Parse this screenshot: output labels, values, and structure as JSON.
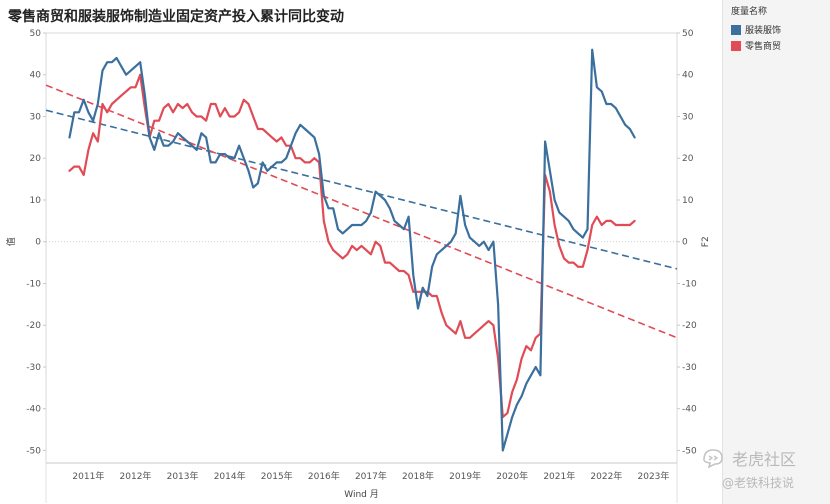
{
  "title": "零售商贸和服装服饰制造业固定资产投入累计同比变动",
  "legend": {
    "title": "度量名称",
    "items": [
      {
        "label": "服装服饰",
        "color": "#3a6f9e"
      },
      {
        "label": "零售商贸",
        "color": "#e04b56"
      }
    ]
  },
  "watermark": {
    "main": "老虎社区",
    "sub": "@老铁科技说"
  },
  "chart_data": {
    "type": "line",
    "xlabel": "Wind 月",
    "ylabel": "值",
    "ylabel_right": "F2",
    "ylim": [
      -53,
      50
    ],
    "yticks": [
      50,
      40,
      30,
      20,
      10,
      0,
      -10,
      -20,
      -30,
      -40,
      -50
    ],
    "xticks": [
      "2011年",
      "2012年",
      "2013年",
      "2014年",
      "2015年",
      "2016年",
      "2017年",
      "2018年",
      "2019年",
      "2020年",
      "2021年",
      "2022年",
      "2023年"
    ],
    "xlim": [
      2010.4,
      2023.8
    ],
    "grid": false,
    "series": [
      {
        "name": "服装服饰",
        "color": "#3a6f9e",
        "points": [
          [
            2010.9,
            25
          ],
          [
            2011.0,
            31
          ],
          [
            2011.1,
            31
          ],
          [
            2011.2,
            34
          ],
          [
            2011.3,
            31
          ],
          [
            2011.4,
            29
          ],
          [
            2011.5,
            33
          ],
          [
            2011.6,
            41
          ],
          [
            2011.7,
            43
          ],
          [
            2011.8,
            43
          ],
          [
            2011.9,
            44
          ],
          [
            2012.0,
            42
          ],
          [
            2012.1,
            40
          ],
          [
            2012.2,
            41
          ],
          [
            2012.3,
            42
          ],
          [
            2012.4,
            43
          ],
          [
            2012.5,
            35
          ],
          [
            2012.6,
            25
          ],
          [
            2012.7,
            22
          ],
          [
            2012.8,
            26
          ],
          [
            2012.9,
            23
          ],
          [
            2013.0,
            23
          ],
          [
            2013.1,
            24
          ],
          [
            2013.2,
            26
          ],
          [
            2013.3,
            25
          ],
          [
            2013.4,
            24
          ],
          [
            2013.5,
            23
          ],
          [
            2013.6,
            22
          ],
          [
            2013.7,
            26
          ],
          [
            2013.8,
            25
          ],
          [
            2013.9,
            19
          ],
          [
            2014.0,
            19
          ],
          [
            2014.1,
            21
          ],
          [
            2014.2,
            21
          ],
          [
            2014.3,
            20
          ],
          [
            2014.4,
            20
          ],
          [
            2014.5,
            23
          ],
          [
            2014.6,
            20
          ],
          [
            2014.7,
            17
          ],
          [
            2014.8,
            13
          ],
          [
            2014.9,
            14
          ],
          [
            2015.0,
            19
          ],
          [
            2015.1,
            17
          ],
          [
            2015.2,
            18
          ],
          [
            2015.3,
            19
          ],
          [
            2015.4,
            19
          ],
          [
            2015.5,
            20
          ],
          [
            2015.6,
            23
          ],
          [
            2015.7,
            26
          ],
          [
            2015.8,
            28
          ],
          [
            2015.9,
            27
          ],
          [
            2016.0,
            26
          ],
          [
            2016.1,
            25
          ],
          [
            2016.2,
            21
          ],
          [
            2016.3,
            11
          ],
          [
            2016.4,
            8
          ],
          [
            2016.5,
            8
          ],
          [
            2016.6,
            3
          ],
          [
            2016.7,
            2
          ],
          [
            2016.8,
            3
          ],
          [
            2016.9,
            4
          ],
          [
            2017.0,
            4
          ],
          [
            2017.1,
            4
          ],
          [
            2017.2,
            5
          ],
          [
            2017.3,
            7
          ],
          [
            2017.4,
            12
          ],
          [
            2017.5,
            11
          ],
          [
            2017.6,
            10
          ],
          [
            2017.7,
            8
          ],
          [
            2017.8,
            5
          ],
          [
            2017.9,
            4
          ],
          [
            2018.0,
            3
          ],
          [
            2018.1,
            6
          ],
          [
            2018.2,
            -8
          ],
          [
            2018.3,
            -16
          ],
          [
            2018.4,
            -11
          ],
          [
            2018.5,
            -13
          ],
          [
            2018.6,
            -6
          ],
          [
            2018.7,
            -3
          ],
          [
            2018.8,
            -2
          ],
          [
            2018.9,
            -1
          ],
          [
            2019.0,
            0
          ],
          [
            2019.1,
            2
          ],
          [
            2019.2,
            11
          ],
          [
            2019.3,
            4
          ],
          [
            2019.4,
            1
          ],
          [
            2019.5,
            0
          ],
          [
            2019.6,
            -1
          ],
          [
            2019.7,
            0
          ],
          [
            2019.8,
            -2
          ],
          [
            2019.9,
            0
          ],
          [
            2020.0,
            -15
          ],
          [
            2020.1,
            -50
          ],
          [
            2020.2,
            -46
          ],
          [
            2020.3,
            -42
          ],
          [
            2020.4,
            -39
          ],
          [
            2020.5,
            -37
          ],
          [
            2020.6,
            -34
          ],
          [
            2020.7,
            -32
          ],
          [
            2020.8,
            -30
          ],
          [
            2020.9,
            -32
          ],
          [
            2021.0,
            24
          ],
          [
            2021.1,
            17
          ],
          [
            2021.2,
            10
          ],
          [
            2021.3,
            7
          ],
          [
            2021.4,
            6
          ],
          [
            2021.5,
            5
          ],
          [
            2021.6,
            3
          ],
          [
            2021.7,
            2
          ],
          [
            2021.8,
            1
          ],
          [
            2021.9,
            3
          ],
          [
            2022.0,
            46
          ],
          [
            2022.1,
            37
          ],
          [
            2022.2,
            36
          ],
          [
            2022.3,
            33
          ],
          [
            2022.4,
            33
          ],
          [
            2022.5,
            32
          ],
          [
            2022.6,
            30
          ],
          [
            2022.7,
            28
          ],
          [
            2022.8,
            27
          ],
          [
            2022.9,
            25
          ]
        ]
      },
      {
        "name": "零售商贸",
        "color": "#e04b56",
        "points": [
          [
            2010.9,
            17
          ],
          [
            2011.0,
            18
          ],
          [
            2011.1,
            18
          ],
          [
            2011.2,
            16
          ],
          [
            2011.3,
            22
          ],
          [
            2011.4,
            26
          ],
          [
            2011.5,
            24
          ],
          [
            2011.6,
            33
          ],
          [
            2011.7,
            31
          ],
          [
            2011.8,
            33
          ],
          [
            2011.9,
            34
          ],
          [
            2012.0,
            35
          ],
          [
            2012.1,
            36
          ],
          [
            2012.2,
            37
          ],
          [
            2012.3,
            37
          ],
          [
            2012.4,
            40
          ],
          [
            2012.5,
            32
          ],
          [
            2012.6,
            25
          ],
          [
            2012.7,
            29
          ],
          [
            2012.8,
            29
          ],
          [
            2012.9,
            32
          ],
          [
            2013.0,
            33
          ],
          [
            2013.1,
            31
          ],
          [
            2013.2,
            33
          ],
          [
            2013.3,
            32
          ],
          [
            2013.4,
            33
          ],
          [
            2013.5,
            31
          ],
          [
            2013.6,
            30
          ],
          [
            2013.7,
            30
          ],
          [
            2013.8,
            29
          ],
          [
            2013.9,
            33
          ],
          [
            2014.0,
            33
          ],
          [
            2014.1,
            30
          ],
          [
            2014.2,
            32
          ],
          [
            2014.3,
            30
          ],
          [
            2014.4,
            30
          ],
          [
            2014.5,
            31
          ],
          [
            2014.6,
            34
          ],
          [
            2014.7,
            33
          ],
          [
            2014.8,
            30
          ],
          [
            2014.9,
            27
          ],
          [
            2015.0,
            27
          ],
          [
            2015.1,
            26
          ],
          [
            2015.2,
            25
          ],
          [
            2015.3,
            24
          ],
          [
            2015.4,
            25
          ],
          [
            2015.5,
            23
          ],
          [
            2015.6,
            23
          ],
          [
            2015.7,
            20
          ],
          [
            2015.8,
            20
          ],
          [
            2015.9,
            19
          ],
          [
            2016.0,
            19
          ],
          [
            2016.1,
            20
          ],
          [
            2016.2,
            19
          ],
          [
            2016.3,
            5
          ],
          [
            2016.4,
            0
          ],
          [
            2016.5,
            -2
          ],
          [
            2016.6,
            -3
          ],
          [
            2016.7,
            -4
          ],
          [
            2016.8,
            -3
          ],
          [
            2016.9,
            -1
          ],
          [
            2017.0,
            -2
          ],
          [
            2017.1,
            -1
          ],
          [
            2017.2,
            -2
          ],
          [
            2017.3,
            -3
          ],
          [
            2017.4,
            0
          ],
          [
            2017.5,
            -1
          ],
          [
            2017.6,
            -5
          ],
          [
            2017.7,
            -5
          ],
          [
            2017.8,
            -6
          ],
          [
            2017.9,
            -7
          ],
          [
            2018.0,
            -7
          ],
          [
            2018.1,
            -8
          ],
          [
            2018.2,
            -12
          ],
          [
            2018.3,
            -12
          ],
          [
            2018.4,
            -12
          ],
          [
            2018.5,
            -12
          ],
          [
            2018.6,
            -13
          ],
          [
            2018.7,
            -13
          ],
          [
            2018.8,
            -17
          ],
          [
            2018.9,
            -20
          ],
          [
            2019.0,
            -21
          ],
          [
            2019.1,
            -22
          ],
          [
            2019.2,
            -19
          ],
          [
            2019.3,
            -23
          ],
          [
            2019.4,
            -23
          ],
          [
            2019.5,
            -22
          ],
          [
            2019.6,
            -21
          ],
          [
            2019.7,
            -20
          ],
          [
            2019.8,
            -19
          ],
          [
            2019.9,
            -20
          ],
          [
            2020.0,
            -28
          ],
          [
            2020.1,
            -42
          ],
          [
            2020.2,
            -41
          ],
          [
            2020.3,
            -36
          ],
          [
            2020.4,
            -33
          ],
          [
            2020.5,
            -28
          ],
          [
            2020.6,
            -25
          ],
          [
            2020.7,
            -26
          ],
          [
            2020.8,
            -23
          ],
          [
            2020.9,
            -22
          ],
          [
            2021.0,
            16
          ],
          [
            2021.1,
            12
          ],
          [
            2021.2,
            4
          ],
          [
            2021.3,
            -1
          ],
          [
            2021.4,
            -4
          ],
          [
            2021.5,
            -5
          ],
          [
            2021.6,
            -5
          ],
          [
            2021.7,
            -6
          ],
          [
            2021.8,
            -6
          ],
          [
            2021.9,
            -2
          ],
          [
            2022.0,
            4
          ],
          [
            2022.1,
            6
          ],
          [
            2022.2,
            4
          ],
          [
            2022.3,
            5
          ],
          [
            2022.4,
            5
          ],
          [
            2022.5,
            4
          ],
          [
            2022.6,
            4
          ],
          [
            2022.7,
            4
          ],
          [
            2022.8,
            4
          ],
          [
            2022.9,
            5
          ]
        ]
      }
    ],
    "trendlines": [
      {
        "series": "服装服饰",
        "color": "#3a6f9e",
        "from": [
          2010.4,
          31.5
        ],
        "to": [
          2023.8,
          -6.5
        ]
      },
      {
        "series": "零售商贸",
        "color": "#e04b56",
        "from": [
          2010.4,
          37.5
        ],
        "to": [
          2023.8,
          -23
        ]
      }
    ]
  }
}
